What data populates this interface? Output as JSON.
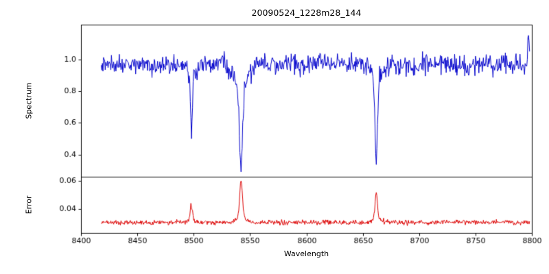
{
  "figure": {
    "title": "20090524_1228m28_144",
    "xlabel": "Wavelength",
    "background": "#ffffff"
  },
  "chart_data": [
    {
      "type": "line",
      "name": "spectrum-panel",
      "ylabel": "Spectrum",
      "color": "#0000cc",
      "xlim": [
        8400,
        8800
      ],
      "ylim": [
        0.26,
        1.22
      ],
      "yticks": [
        0.4,
        0.6,
        0.8,
        1.0
      ],
      "ytick_labels": [
        "0.4",
        "0.6",
        "0.8",
        "1.0"
      ],
      "x_data_range": [
        8418,
        8798
      ],
      "baseline": 0.97,
      "noise_std": 0.033,
      "absorption_lines": [
        {
          "center": 8498,
          "depth": 0.4,
          "sigma": 0.9,
          "wing_depth": 0.06,
          "wing_sigma": 3.0
        },
        {
          "center": 8542,
          "depth": 0.47,
          "sigma": 1.2,
          "wing_depth": 0.19,
          "wing_sigma": 5.0
        },
        {
          "center": 8662,
          "depth": 0.5,
          "sigma": 1.0,
          "wing_depth": 0.12,
          "wing_sigma": 3.5
        }
      ],
      "spikes": [
        {
          "center": 8797,
          "height": 0.2,
          "sigma": 0.6
        }
      ]
    },
    {
      "type": "line",
      "name": "error-panel",
      "ylabel": "Error",
      "color": "#dd0000",
      "xlim": [
        8400,
        8800
      ],
      "ylim": [
        0.023,
        0.063
      ],
      "yticks": [
        0.04,
        0.06
      ],
      "ytick_labels": [
        "0.04",
        "0.06"
      ],
      "xticks": [
        8400,
        8450,
        8500,
        8550,
        8600,
        8650,
        8700,
        8750,
        8800
      ],
      "xtick_labels": [
        "8400",
        "8450",
        "8500",
        "8550",
        "8600",
        "8650",
        "8700",
        "8750",
        "8800"
      ],
      "x_data_range": [
        8418,
        8798
      ],
      "baseline": 0.0305,
      "noise_std": 0.0009,
      "emission_peaks": [
        {
          "center": 8498,
          "height": 0.011,
          "sigma": 0.9,
          "wing_height": 0.002,
          "wing_sigma": 3.0
        },
        {
          "center": 8542,
          "height": 0.026,
          "sigma": 1.2,
          "wing_height": 0.004,
          "wing_sigma": 4.0
        },
        {
          "center": 8662,
          "height": 0.018,
          "sigma": 1.0,
          "wing_height": 0.003,
          "wing_sigma": 3.5
        }
      ]
    }
  ]
}
